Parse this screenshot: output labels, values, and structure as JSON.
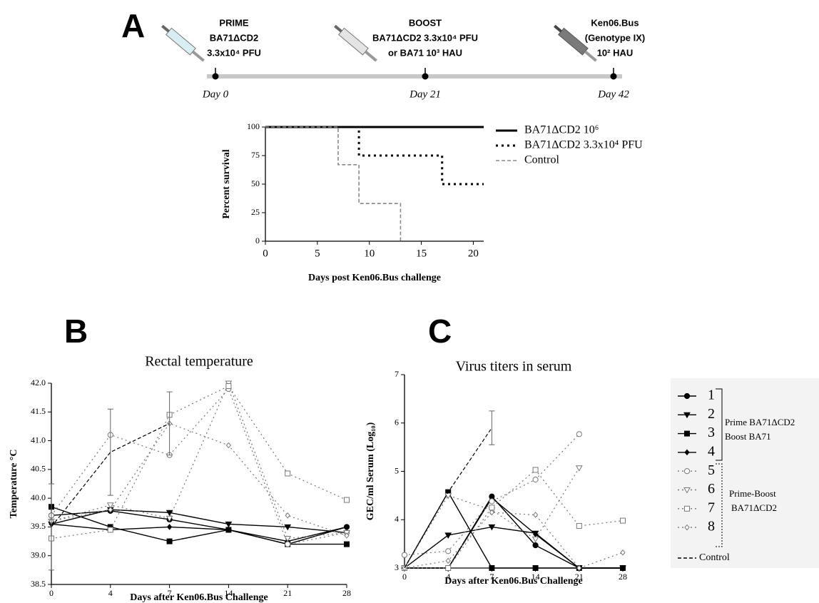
{
  "timeline": {
    "panel_label": "A",
    "stages": [
      {
        "lines": [
          "PRIME",
          "BA71ΔCD2",
          "3.3x10⁴ PFU"
        ],
        "day": "Day 0"
      },
      {
        "lines": [
          "BOOST",
          "BA71ΔCD2 3.3x10⁴ PFU",
          "or BA71 10³ HAU"
        ],
        "day": "Day 21"
      },
      {
        "lines": [
          "Ken06.Bus",
          "(Genotype IX)",
          "10² HAU"
        ],
        "day": "Day 42"
      }
    ]
  },
  "chart_data": [
    {
      "type": "survival",
      "xlabel": "Days post Ken06.Bus challenge",
      "ylabel": "Percent survival",
      "xlim": [
        0,
        21
      ],
      "xticks": [
        0,
        5,
        10,
        15,
        20
      ],
      "ylim": [
        0,
        100
      ],
      "yticks": [
        0,
        25,
        50,
        75,
        100
      ],
      "series": [
        {
          "name": "BA71ΔCD2 10⁶",
          "color": "#000000",
          "dash": "solid",
          "x": [
            0,
            21
          ],
          "values": [
            100,
            100
          ]
        },
        {
          "name": "BA71ΔCD2 3.3x10⁴ PFU",
          "color": "#000000",
          "dash": "dotted",
          "x": [
            0,
            9,
            9,
            17,
            17,
            21
          ],
          "values": [
            100,
            100,
            75,
            75,
            50,
            50
          ]
        },
        {
          "name": "Control",
          "color": "#888888",
          "dash": "dashed",
          "x": [
            0,
            7,
            7,
            9,
            9,
            13,
            13
          ],
          "values": [
            100,
            100,
            67,
            67,
            33,
            33,
            0
          ]
        }
      ]
    },
    {
      "type": "line",
      "panel_label": "B",
      "title": "Rectal temperature",
      "xlabel": "Days after Ken06.Bus Challenge",
      "ylabel": "Temperature °C",
      "categories": [
        "0",
        "4",
        "7",
        "14",
        "21",
        "28"
      ],
      "ylim": [
        38.5,
        42
      ],
      "yticks": [
        38.5,
        {
          "value": 39,
          "label": "39.0"
        },
        39.5,
        {
          "value": 40,
          "label": "40.0"
        },
        40.5,
        {
          "value": 41,
          "label": "41.0"
        },
        41.5,
        {
          "value": 42,
          "label": "42.0"
        }
      ],
      "series": [
        {
          "color": "#000000",
          "dash": "solid",
          "marker": "circle",
          "marker_filled": true,
          "values": [
            39.7,
            39.78,
            39.63,
            39.45,
            39.2,
            39.5
          ]
        },
        {
          "color": "#000000",
          "dash": "solid",
          "marker": "triangle-down",
          "marker_filled": true,
          "values": [
            39.55,
            39.8,
            39.75,
            39.55,
            39.5,
            39.4
          ]
        },
        {
          "color": "#000000",
          "dash": "solid",
          "marker": "square",
          "marker_filled": true,
          "values": [
            39.85,
            39.5,
            39.25,
            39.45,
            39.2,
            39.2
          ]
        },
        {
          "color": "#000000",
          "dash": "solid",
          "marker": "diamond",
          "marker_filled": true,
          "values": [
            39.55,
            39.45,
            39.5,
            39.45,
            39.25,
            39.5
          ]
        },
        {
          "color": "#777777",
          "dash": "dotted",
          "marker": "circle",
          "marker_filled": false,
          "values": [
            39.7,
            41.1,
            40.75,
            41.9,
            39.2,
            39.4
          ]
        },
        {
          "color": "#777777",
          "dash": "dotted",
          "marker": "triangle-down",
          "marker_filled": false,
          "values": [
            39.6,
            39.88,
            39.65,
            42,
            39.3,
            39.4
          ]
        },
        {
          "color": "#777777",
          "dash": "dotted",
          "marker": "square",
          "marker_filled": false,
          "values": [
            39.3,
            39.45,
            41.45,
            41.95,
            40.43,
            39.97
          ]
        },
        {
          "color": "#777777",
          "dash": "dotted",
          "marker": "diamond",
          "marker_filled": false,
          "values": [
            39.6,
            39.8,
            41.3,
            40.92,
            39.7,
            39.35
          ]
        },
        {
          "color": "#000000",
          "dash": "dashed",
          "values": [
            39.5,
            40.8,
            41.3,
            null,
            null,
            null
          ],
          "errors": [
            0.75,
            0.75,
            0.55,
            null,
            null,
            null
          ]
        }
      ]
    },
    {
      "type": "line",
      "panel_label": "C",
      "title": "Virus titers in serum",
      "xlabel": "Days after Ken06.Bus Challenge",
      "ylabel": "GEC/ml Serum (Log₁₀)",
      "categories": [
        "0",
        "4",
        "7",
        "14",
        "21",
        "28"
      ],
      "ylim": [
        3,
        7
      ],
      "yticks": [
        3,
        4,
        5,
        6,
        7
      ],
      "legend_groups": [
        [
          "Prime BA71ΔCD2",
          "Boost BA71"
        ],
        [
          "Prime-Boost",
          "BA71ΔCD2"
        ]
      ],
      "series": [
        {
          "name": "1",
          "color": "#000000",
          "dash": "solid",
          "marker": "circle",
          "marker_filled": true,
          "values": [
            3,
            3,
            4.48,
            3.47,
            3,
            3
          ]
        },
        {
          "name": "2",
          "color": "#000000",
          "dash": "solid",
          "marker": "triangle-down",
          "marker_filled": true,
          "values": [
            3,
            3.68,
            3.85,
            3.72,
            3,
            3
          ]
        },
        {
          "name": "3",
          "color": "#000000",
          "dash": "solid",
          "marker": "square",
          "marker_filled": true,
          "values": [
            3,
            4.57,
            3,
            3,
            3,
            3
          ]
        },
        {
          "name": "4",
          "color": "#000000",
          "dash": "solid",
          "marker": "diamond",
          "marker_filled": true,
          "values": [
            3,
            3,
            4.45,
            3.7,
            3,
            3
          ]
        },
        {
          "name": "5",
          "color": "#777777",
          "dash": "dotted",
          "marker": "circle",
          "marker_filled": false,
          "values": [
            3.27,
            3.35,
            4.38,
            4.83,
            5.77,
            null
          ]
        },
        {
          "name": "6",
          "color": "#777777",
          "dash": "dotted",
          "marker": "triangle-down",
          "marker_filled": false,
          "values": [
            3,
            4.5,
            4.2,
            3.6,
            5.07,
            null
          ]
        },
        {
          "name": "7",
          "color": "#777777",
          "dash": "dotted",
          "marker": "square",
          "marker_filled": false,
          "values": [
            3,
            3,
            4.25,
            5.03,
            3.87,
            3.98
          ]
        },
        {
          "name": "8",
          "color": "#777777",
          "dash": "dotted",
          "marker": "diamond",
          "marker_filled": false,
          "values": [
            3,
            3.15,
            4.15,
            4.1,
            3,
            3.32
          ]
        },
        {
          "name": "Control",
          "color": "#000000",
          "dash": "dashed",
          "values": [
            3,
            4.57,
            5.9,
            null,
            null,
            null
          ],
          "errors": [
            null,
            null,
            0.35,
            null,
            null,
            null
          ]
        }
      ]
    }
  ]
}
